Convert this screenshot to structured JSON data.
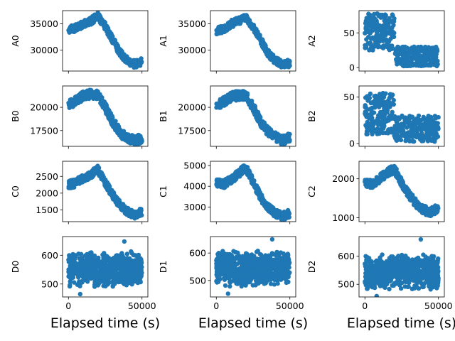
{
  "figure": {
    "layout": "4x3 grid of scatter plots",
    "marker_color": "#1f77b4",
    "x_axis_label": "Elapsed time (s)",
    "x_tick_labels": [
      "0",
      "50000"
    ]
  },
  "chart_data": [
    {
      "type": "scatter",
      "ylabel": "A0",
      "xlim": [
        -4000,
        54000
      ],
      "ylim": [
        26000,
        37500
      ],
      "yticks": [
        30000,
        35000
      ],
      "grid": false,
      "pattern": "trend",
      "profile": [
        [
          0,
          33800
        ],
        [
          5000,
          34200
        ],
        [
          10000,
          35000
        ],
        [
          15000,
          35500
        ],
        [
          20000,
          36500
        ],
        [
          25000,
          34500
        ],
        [
          30000,
          32000
        ],
        [
          35000,
          29500
        ],
        [
          40000,
          28000
        ],
        [
          45000,
          27300
        ],
        [
          50000,
          27800
        ]
      ],
      "spread": 1400,
      "points": 380
    },
    {
      "type": "scatter",
      "ylabel": "A1",
      "xlim": [
        -4000,
        54000
      ],
      "ylim": [
        26000,
        37500
      ],
      "yticks": [
        30000,
        35000
      ],
      "grid": false,
      "pattern": "trend",
      "profile": [
        [
          0,
          33700
        ],
        [
          5000,
          34000
        ],
        [
          10000,
          35000
        ],
        [
          15000,
          35500
        ],
        [
          20000,
          36200
        ],
        [
          25000,
          34500
        ],
        [
          30000,
          32000
        ],
        [
          35000,
          29500
        ],
        [
          40000,
          28000
        ],
        [
          45000,
          27300
        ],
        [
          50000,
          27500
        ]
      ],
      "spread": 1400,
      "points": 380
    },
    {
      "type": "scatter",
      "ylabel": "A2",
      "xlim": [
        -4000,
        54000
      ],
      "ylim": [
        -5,
        82
      ],
      "yticks": [
        0,
        50
      ],
      "grid": false,
      "pattern": "step",
      "step_x": 20000,
      "before": [
        25,
        78
      ],
      "after": [
        2,
        30
      ],
      "points": 420
    },
    {
      "type": "scatter",
      "ylabel": "B0",
      "xlim": [
        -4000,
        54000
      ],
      "ylim": [
        15800,
        22300
      ],
      "yticks": [
        17500,
        20000
      ],
      "grid": false,
      "pattern": "trend",
      "profile": [
        [
          0,
          20300
        ],
        [
          5000,
          20700
        ],
        [
          10000,
          21200
        ],
        [
          15000,
          21400
        ],
        [
          20000,
          21300
        ],
        [
          25000,
          20000
        ],
        [
          30000,
          18500
        ],
        [
          35000,
          17300
        ],
        [
          40000,
          16700
        ],
        [
          45000,
          16400
        ],
        [
          50000,
          16700
        ]
      ],
      "spread": 1000,
      "points": 380
    },
    {
      "type": "scatter",
      "ylabel": "B1",
      "xlim": [
        -4000,
        54000
      ],
      "ylim": [
        15800,
        22300
      ],
      "yticks": [
        17500,
        20000
      ],
      "grid": false,
      "pattern": "trend",
      "profile": [
        [
          0,
          20200
        ],
        [
          5000,
          20600
        ],
        [
          10000,
          21100
        ],
        [
          15000,
          21300
        ],
        [
          20000,
          21300
        ],
        [
          25000,
          20000
        ],
        [
          30000,
          18500
        ],
        [
          35000,
          17400
        ],
        [
          40000,
          16800
        ],
        [
          45000,
          16400
        ],
        [
          50000,
          16800
        ]
      ],
      "spread": 1000,
      "points": 380
    },
    {
      "type": "scatter",
      "ylabel": "B2",
      "xlim": [
        -4000,
        54000
      ],
      "ylim": [
        -3,
        62
      ],
      "yticks": [
        0,
        50
      ],
      "grid": false,
      "pattern": "step",
      "step_x": 20000,
      "before": [
        10,
        55
      ],
      "after": [
        2,
        30
      ],
      "points": 420
    },
    {
      "type": "scatter",
      "ylabel": "C0",
      "xlim": [
        -4000,
        54000
      ],
      "ylim": [
        1150,
        2950
      ],
      "yticks": [
        1500,
        2000,
        2500
      ],
      "grid": false,
      "pattern": "trend",
      "profile": [
        [
          0,
          2250
        ],
        [
          5000,
          2300
        ],
        [
          10000,
          2450
        ],
        [
          15000,
          2550
        ],
        [
          20000,
          2700
        ],
        [
          25000,
          2300
        ],
        [
          30000,
          1950
        ],
        [
          35000,
          1650
        ],
        [
          40000,
          1450
        ],
        [
          45000,
          1350
        ],
        [
          50000,
          1450
        ]
      ],
      "spread": 230,
      "points": 380
    },
    {
      "type": "scatter",
      "ylabel": "C1",
      "xlim": [
        -4000,
        54000
      ],
      "ylim": [
        2300,
        5200
      ],
      "yticks": [
        3000,
        4000,
        5000
      ],
      "grid": false,
      "pattern": "trend",
      "profile": [
        [
          0,
          4150
        ],
        [
          5000,
          4100
        ],
        [
          10000,
          4300
        ],
        [
          15000,
          4600
        ],
        [
          20000,
          4900
        ],
        [
          25000,
          4200
        ],
        [
          30000,
          3500
        ],
        [
          35000,
          3000
        ],
        [
          40000,
          2700
        ],
        [
          45000,
          2550
        ],
        [
          50000,
          2700
        ]
      ],
      "spread": 380,
      "points": 380
    },
    {
      "type": "scatter",
      "ylabel": "C2",
      "xlim": [
        -4000,
        54000
      ],
      "ylim": [
        900,
        2450
      ],
      "yticks": [
        1000,
        2000
      ],
      "grid": false,
      "pattern": "trend",
      "profile": [
        [
          0,
          1900
        ],
        [
          5000,
          1850
        ],
        [
          10000,
          2000
        ],
        [
          15000,
          2150
        ],
        [
          20000,
          2250
        ],
        [
          25000,
          1900
        ],
        [
          30000,
          1600
        ],
        [
          35000,
          1350
        ],
        [
          40000,
          1200
        ],
        [
          45000,
          1150
        ],
        [
          50000,
          1250
        ]
      ],
      "spread": 220,
      "points": 380
    },
    {
      "type": "scatter",
      "ylabel": "D0",
      "xlim": [
        -4000,
        54000
      ],
      "ylim": [
        455,
        665
      ],
      "yticks": [
        500,
        600
      ],
      "grid": false,
      "pattern": "noise",
      "center": 550,
      "spread": 80,
      "tail": [
        465,
        648
      ],
      "points": 700
    },
    {
      "type": "scatter",
      "ylabel": "D1",
      "xlim": [
        -4000,
        54000
      ],
      "ylim": [
        440,
        660
      ],
      "yticks": [
        500,
        600
      ],
      "grid": false,
      "pattern": "noise",
      "center": 545,
      "spread": 85,
      "tail": [
        452,
        650
      ],
      "points": 700
    },
    {
      "type": "scatter",
      "ylabel": "D2",
      "xlim": [
        -4000,
        54000
      ],
      "ylim": [
        455,
        670
      ],
      "yticks": [
        500,
        600
      ],
      "grid": false,
      "pattern": "noise",
      "center": 545,
      "spread": 80,
      "tail": [
        458,
        660
      ],
      "points": 700
    }
  ]
}
